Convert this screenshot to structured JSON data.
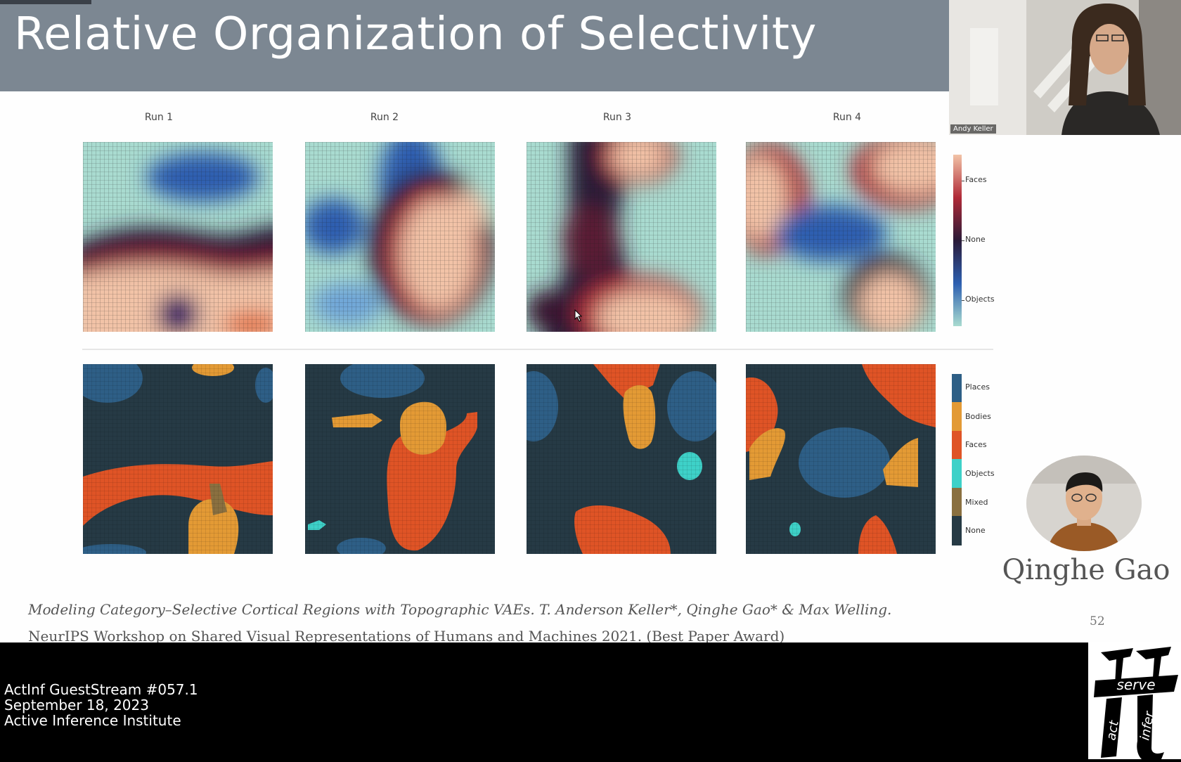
{
  "slide": {
    "title": "Relative Organization of Selectivity",
    "run_labels": [
      "Run 1",
      "Run 2",
      "Run 3",
      "Run 4"
    ],
    "colorbar_top": {
      "labels": [
        "Faces",
        "None",
        "Objects"
      ]
    },
    "colorbar_bottom": {
      "labels": [
        "Places",
        "Bodies",
        "Faces",
        "Objects",
        "Mixed",
        "None"
      ]
    },
    "speaker_name": "Qinghe Gao",
    "page_number": "52",
    "citation_line1": "Modeling Category–Selective Cortical Regions with Topographic VAEs. T. Anderson Keller*, Qinghe Gao* & Max Welling.",
    "citation_line2": "NeurIPS Workshop on Shared Visual Representations of Humans and Machines 2021. (Best Paper Award)"
  },
  "colors": {
    "title_bar": "#7c8792",
    "faces_selective": "#f2c3a7",
    "objects_selective": "#a9dbd0",
    "none_selective": "#2a1a38",
    "places": "#2e5f86",
    "bodies": "#e39a35",
    "faces": "#df5426",
    "objects": "#3ed1c8",
    "mixed": "#8a7040",
    "none": "#263a45"
  },
  "webcam": {
    "name_tag": "Andy Keller"
  },
  "footer": {
    "line1": "ActInf GuestStream #057.1",
    "line2": "September 18, 2023",
    "line3": "Active Inference Institute"
  },
  "logo": {
    "word_top": "serve",
    "word_left": "act",
    "word_right": "infer"
  }
}
